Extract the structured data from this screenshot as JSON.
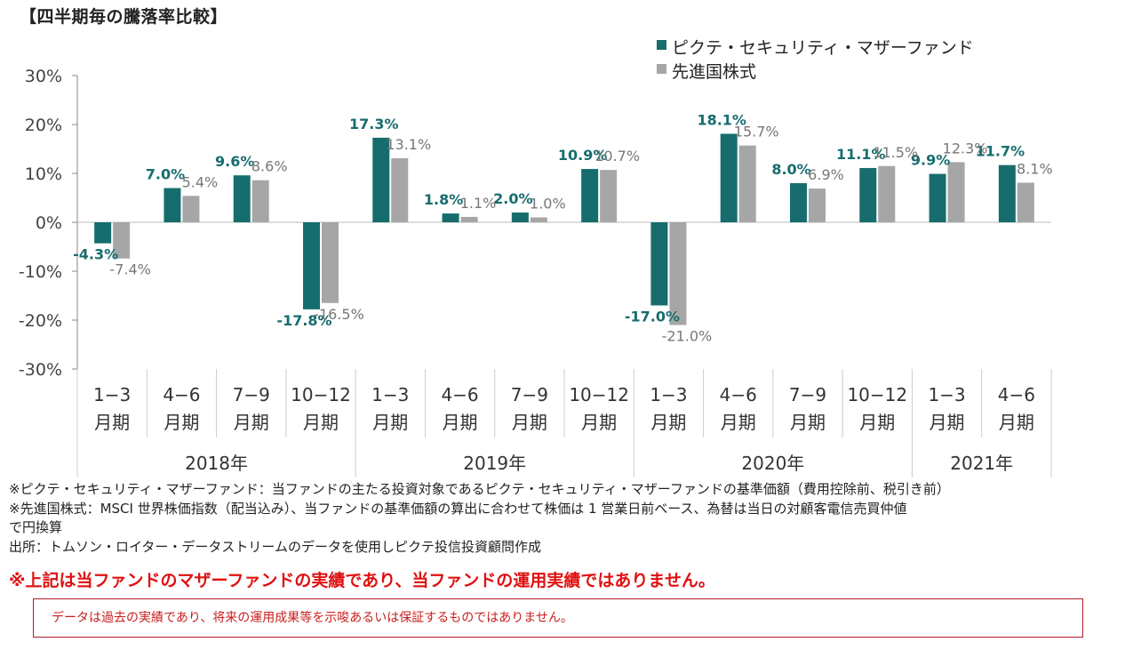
{
  "title": "【四半期毎の騰落率比較】",
  "chart_data": {
    "type": "bar",
    "categories": [
      "1-3 月期",
      "4-6 月期",
      "7-9 月期",
      "10-12 月期",
      "1-3 月期",
      "4-6 月期",
      "7-9 月期",
      "10-12 月期",
      "1-3 月期",
      "4-6 月期",
      "7-9 月期",
      "10-12 月期",
      "1-3 月期",
      "4-6 月期"
    ],
    "quarter_labels": [
      "1−3",
      "4−6",
      "7−9",
      "10−12",
      "1−3",
      "4−6",
      "7−9",
      "10−12",
      "1−3",
      "4−6",
      "7−9",
      "10−12",
      "1−3",
      "4−6"
    ],
    "period_label": "月期",
    "years": [
      {
        "label": "2018年",
        "start": 0,
        "end": 3
      },
      {
        "label": "2019年",
        "start": 4,
        "end": 7
      },
      {
        "label": "2020年",
        "start": 8,
        "end": 11
      },
      {
        "label": "2021年",
        "start": 12,
        "end": 13
      }
    ],
    "series": [
      {
        "name": "ピクテ・セキュリティ・マザーファンド",
        "color": "#176d6e",
        "values": [
          -4.3,
          7.0,
          9.6,
          -17.8,
          17.3,
          1.8,
          2.0,
          10.9,
          -17.0,
          18.1,
          8.0,
          11.1,
          9.9,
          11.7
        ],
        "labels": [
          "-4.3%",
          "7.0%",
          "9.6%",
          "-17.8%",
          "17.3%",
          "1.8%",
          "2.0%",
          "10.9%",
          "-17.0%",
          "18.1%",
          "8.0%",
          "11.1%",
          "9.9%",
          "11.7%"
        ]
      },
      {
        "name": "先進国株式",
        "color": "#a6a6a6",
        "values": [
          -7.4,
          5.4,
          8.6,
          -16.5,
          13.1,
          1.1,
          1.0,
          10.7,
          -21.0,
          15.7,
          6.9,
          11.5,
          12.3,
          8.1
        ],
        "labels": [
          "-7.4%",
          "5.4%",
          "8.6%",
          "-16.5%",
          "13.1%",
          "1.1%",
          "1.0%",
          "10.7%",
          "-21.0%",
          "15.7%",
          "6.9%",
          "11.5%",
          "12.3%",
          "8.1%"
        ]
      }
    ],
    "yticks": [
      30,
      20,
      10,
      0,
      -10,
      -20,
      -30
    ],
    "ytick_labels": [
      "30%",
      "20%",
      "10%",
      "0%",
      "-10%",
      "-20%",
      "-30%"
    ],
    "ylim": [
      -30,
      30
    ],
    "legend": "top-right",
    "grid": false
  },
  "notes": [
    "※ピクテ・セキュリティ・マザーファンド：当ファンドの主たる投資対象であるピクテ・セキュリティ・マザーファンドの基準価額（費用控除前、税引き前）",
    "※先進国株式：MSCI 世界株価指数（配当込み）、当ファンドの基準価額の算出に合わせて株価は 1 営業日前ベース、為替は当日の対顧客電信売買仲値",
    "で円換算",
    "出所：トムソン・ロイター・データストリームのデータを使用しピクテ投信投資顧問作成"
  ],
  "warning": "※上記は当ファンドのマザーファンドの実績であり、当ファンドの運用実績ではありません。",
  "disclaimer": "データは過去の実績であり、将来の運用成果等を示唆あるいは保証するものではありません。"
}
